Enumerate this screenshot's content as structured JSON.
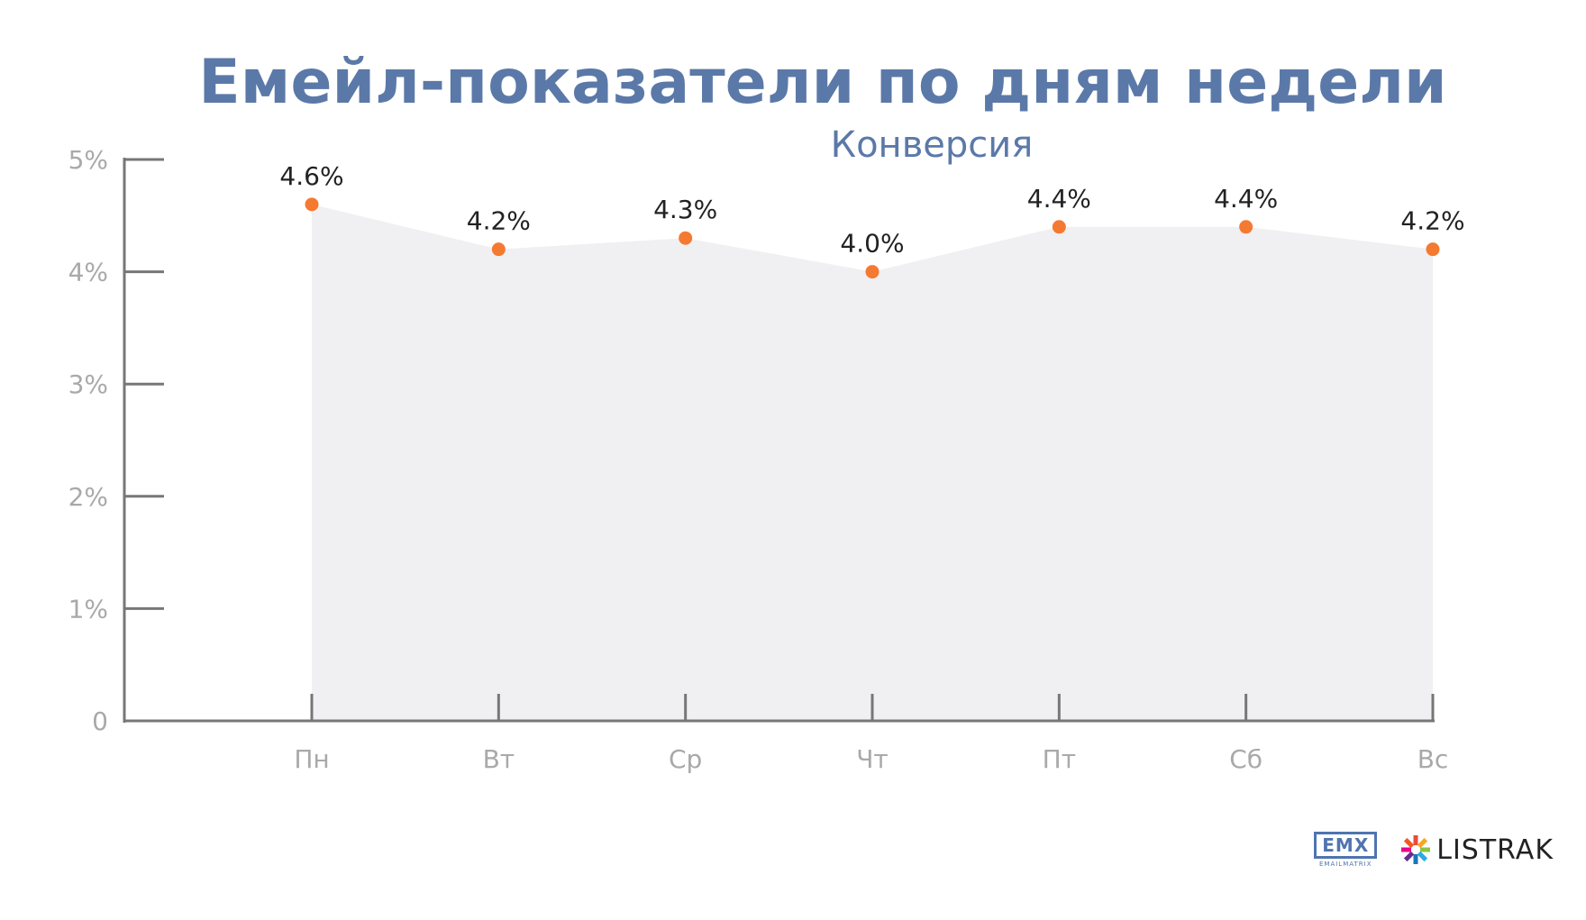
{
  "header": {
    "title": "Емейл-показатели по дням недели",
    "subtitle": "Конверсия"
  },
  "colors": {
    "title": "#5b79a8",
    "axis": "#777777",
    "area": "#f0eff2",
    "point": "#f47a32",
    "tick_text": "#a9a9a9",
    "label_text": "#222222"
  },
  "chart_data": {
    "type": "area",
    "categories": [
      "Пн",
      "Вт",
      "Ср",
      "Чт",
      "Пт",
      "Сб",
      "Вс"
    ],
    "series": [
      {
        "values": [
          4.6,
          4.2,
          4.3,
          4.0,
          4.4,
          4.4,
          4.2
        ]
      }
    ],
    "data_labels": [
      "4.6%",
      "4.2%",
      "4.3%",
      "4.0%",
      "4.4%",
      "4.4%",
      "4.2%"
    ],
    "y_ticks": [
      {
        "value": 0,
        "label": "0"
      },
      {
        "value": 1,
        "label": "1%"
      },
      {
        "value": 2,
        "label": "2%"
      },
      {
        "value": 3,
        "label": "3%"
      },
      {
        "value": 4,
        "label": "4%"
      },
      {
        "value": 5,
        "label": "5%"
      }
    ],
    "ylim": [
      0,
      5
    ],
    "grid": false,
    "legend": "none"
  },
  "logos": {
    "emx": "EMX",
    "emx_sub": "EMAILMATRIX",
    "listrak": "LISTRAK"
  }
}
